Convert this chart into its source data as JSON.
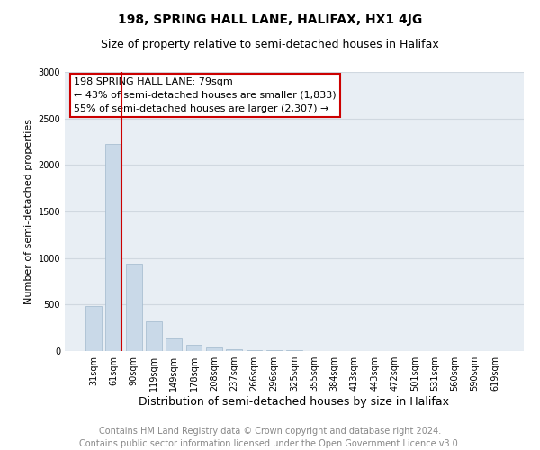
{
  "title": "198, SPRING HALL LANE, HALIFAX, HX1 4JG",
  "subtitle": "Size of property relative to semi-detached houses in Halifax",
  "xlabel": "Distribution of semi-detached houses by size in Halifax",
  "ylabel": "Number of semi-detached properties",
  "annotation_title": "198 SPRING HALL LANE: 79sqm",
  "annotation_line1": "← 43% of semi-detached houses are smaller (1,833)",
  "annotation_line2": "55% of semi-detached houses are larger (2,307) →",
  "footer_line1": "Contains HM Land Registry data © Crown copyright and database right 2024.",
  "footer_line2": "Contains public sector information licensed under the Open Government Licence v3.0.",
  "categories": [
    "31sqm",
    "61sqm",
    "90sqm",
    "119sqm",
    "149sqm",
    "178sqm",
    "208sqm",
    "237sqm",
    "266sqm",
    "296sqm",
    "325sqm",
    "355sqm",
    "384sqm",
    "413sqm",
    "443sqm",
    "472sqm",
    "501sqm",
    "531sqm",
    "560sqm",
    "590sqm",
    "619sqm"
  ],
  "values": [
    480,
    2230,
    940,
    320,
    140,
    65,
    35,
    20,
    12,
    8,
    5,
    4,
    3,
    2,
    2,
    1,
    1,
    1,
    0,
    0,
    0
  ],
  "bar_color": "#c9d9e8",
  "bar_edge_color": "#a0b8cc",
  "vline_color": "#cc0000",
  "vline_bar_index": 1,
  "annotation_box_facecolor": "#ffffff",
  "annotation_box_edgecolor": "#cc0000",
  "ylim": [
    0,
    3000
  ],
  "yticks": [
    0,
    500,
    1000,
    1500,
    2000,
    2500,
    3000
  ],
  "grid_color": "#d0d8e0",
  "plot_bg_color": "#e8eef4",
  "title_fontsize": 10,
  "subtitle_fontsize": 9,
  "annotation_fontsize": 8,
  "footer_fontsize": 7,
  "xlabel_fontsize": 9,
  "ylabel_fontsize": 8,
  "tick_fontsize": 7
}
